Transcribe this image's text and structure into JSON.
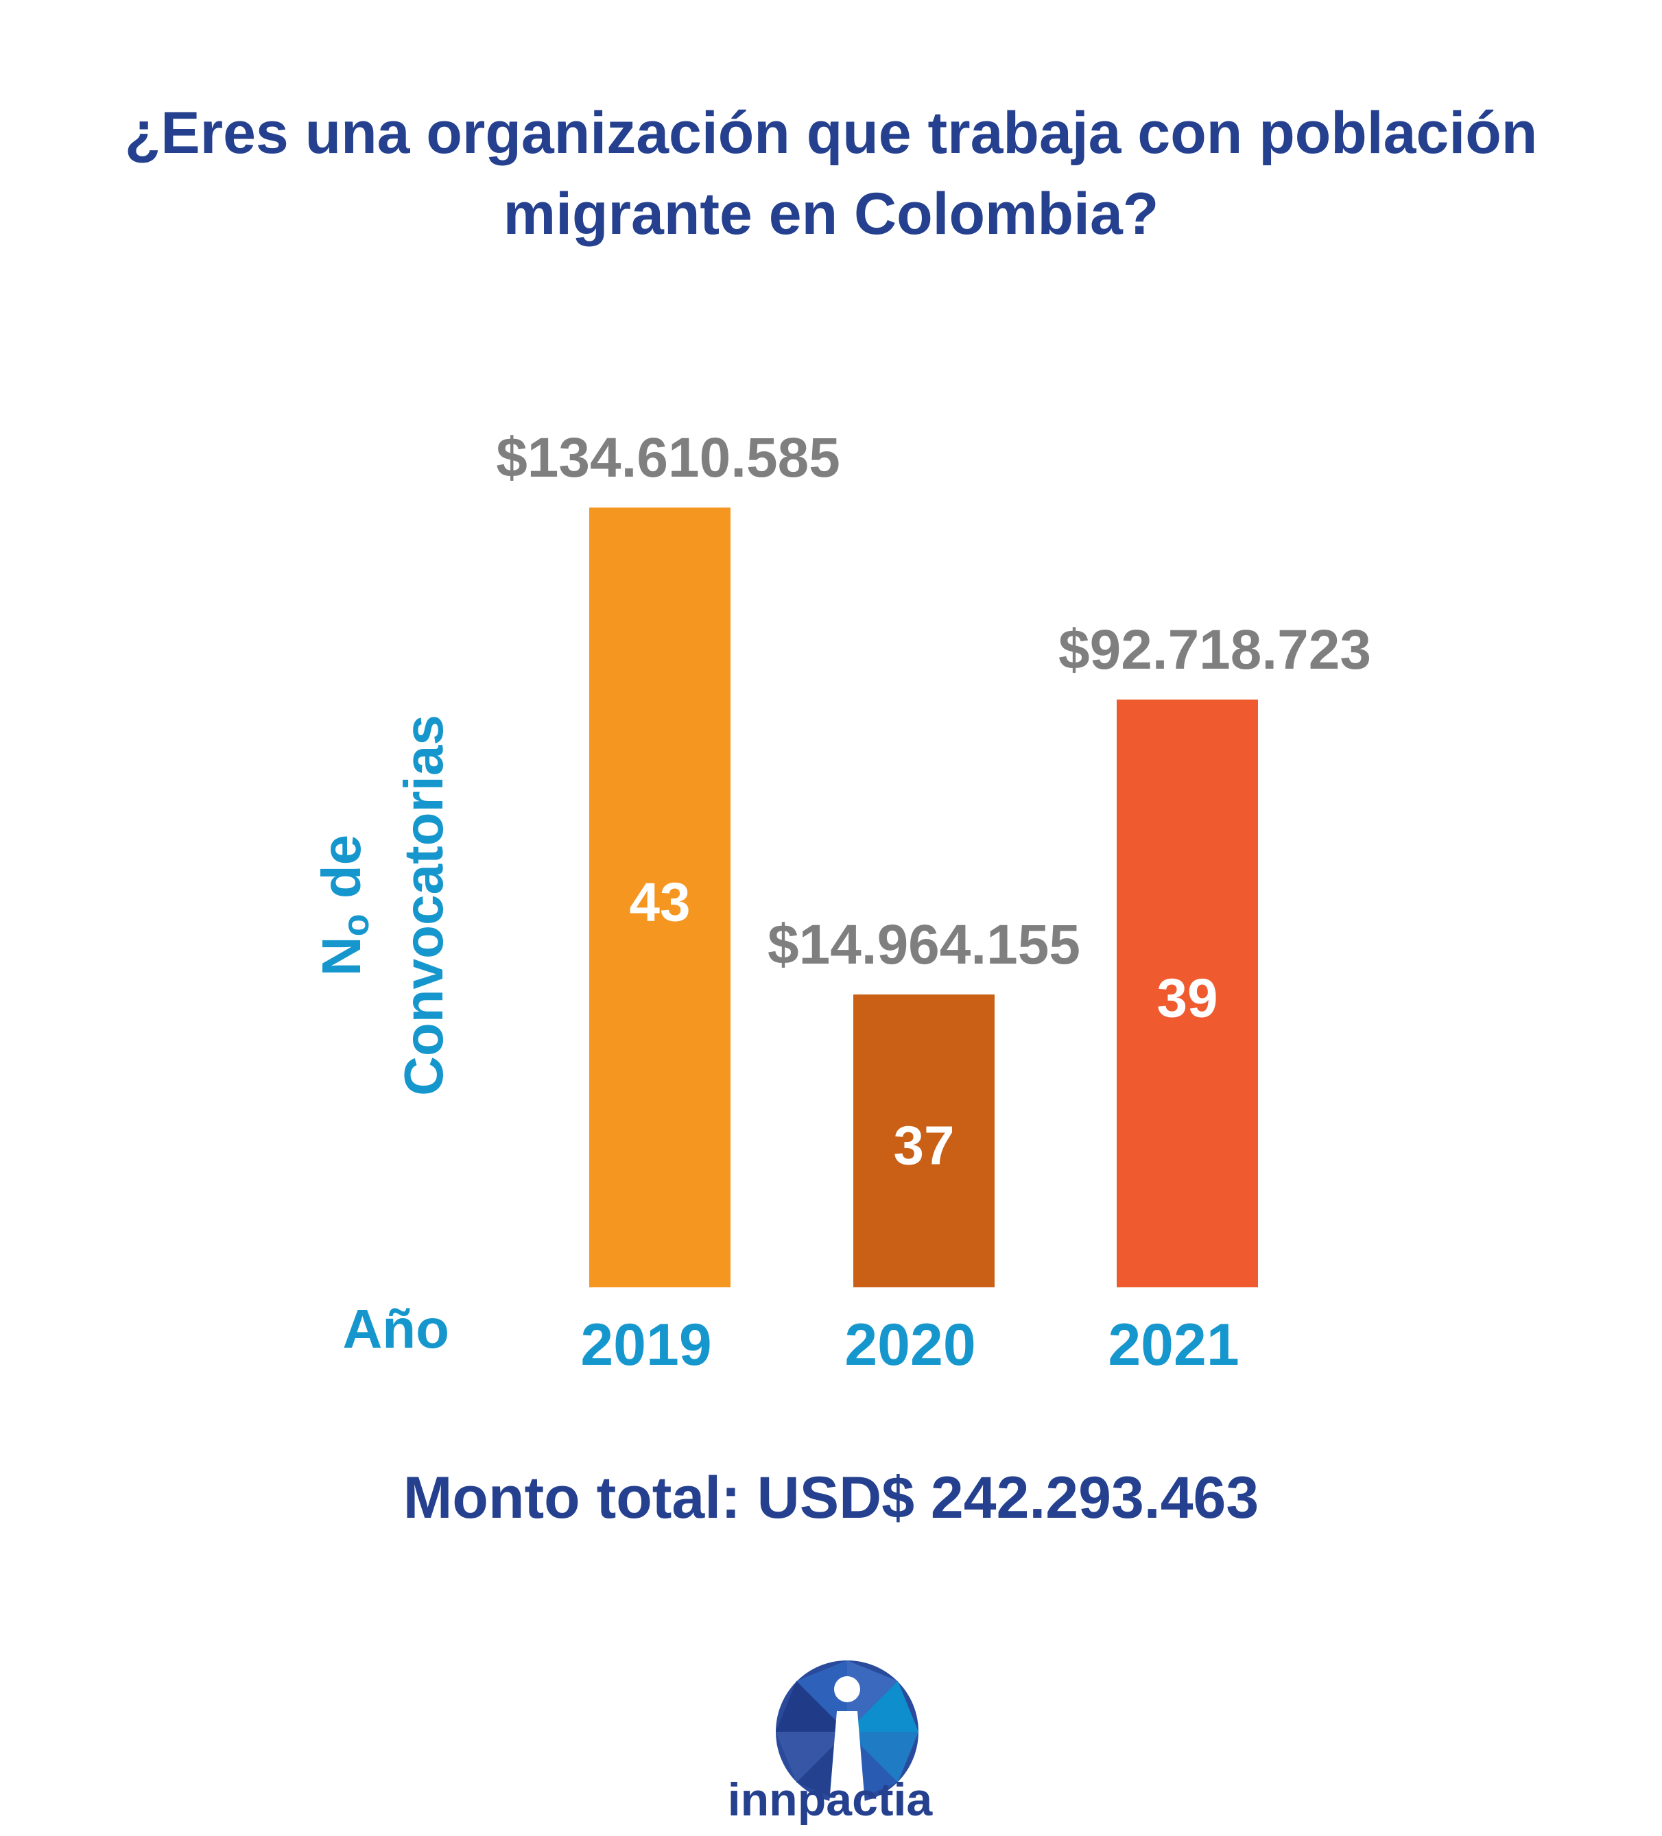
{
  "title_line1": "¿Eres una organización que trabaja con población",
  "title_line2": "migrante en Colombia?",
  "chart_data": {
    "type": "bar",
    "title": "¿Eres una organización que trabaja con población migrante en Colombia?",
    "xlabel": "Año",
    "ylabel": "No de Convocatorias",
    "categories": [
      "2019",
      "2020",
      "2021"
    ],
    "values": [
      43,
      37,
      39
    ],
    "amount_labels": [
      "$134.610.585",
      "$14.964.155",
      "$92.718.723"
    ],
    "amounts": [
      134610585,
      14964155,
      92718723
    ],
    "colors": [
      "#f59621",
      "#c96016",
      "#ef5a2f"
    ],
    "grid": false,
    "legend": "none"
  },
  "total_label": "Monto total: USD$ 242.293.463",
  "logo": {
    "name": "innpactia",
    "wordmark": "innpactia",
    "colors": [
      "#24408e",
      "#3f6fc4",
      "#0a9ad6"
    ]
  }
}
